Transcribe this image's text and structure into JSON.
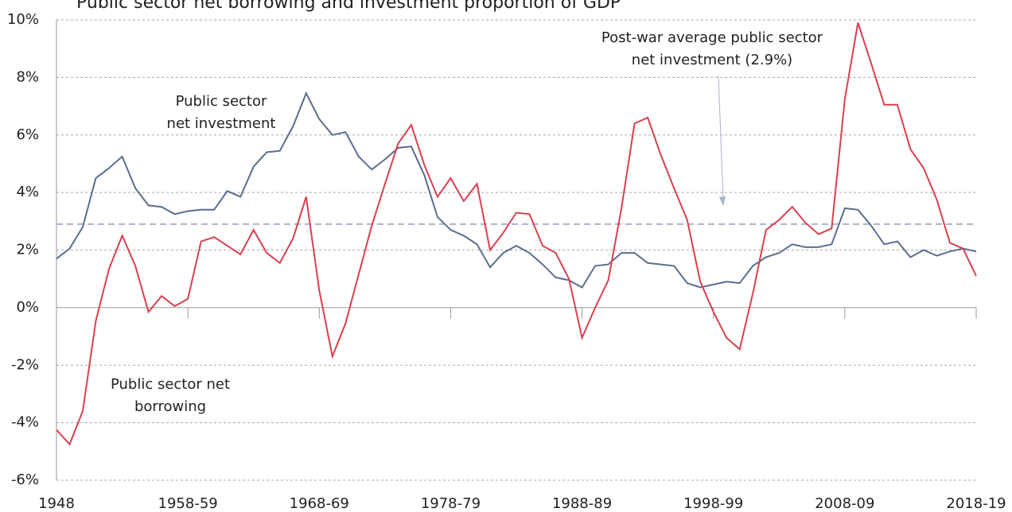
{
  "chart_data": {
    "type": "line",
    "title": "Public sector net borrowing and investment proportion of GDP",
    "categories": [
      "1948",
      null,
      null,
      null,
      null,
      null,
      null,
      null,
      null,
      null,
      "1958-59",
      null,
      null,
      null,
      null,
      null,
      null,
      null,
      null,
      null,
      "1968-69",
      null,
      null,
      null,
      null,
      null,
      null,
      null,
      null,
      null,
      "1978-79",
      null,
      null,
      null,
      null,
      null,
      null,
      null,
      null,
      null,
      "1988-89",
      null,
      null,
      null,
      null,
      null,
      null,
      null,
      null,
      null,
      "1998-99",
      null,
      null,
      null,
      null,
      null,
      null,
      null,
      null,
      null,
      "2008-09",
      null,
      null,
      null,
      null,
      null,
      null,
      null,
      null,
      null,
      "2018-19"
    ],
    "series": [
      {
        "name": "Public sector net investment",
        "label_lines": [
          "Public sector",
          "net investment"
        ],
        "color": "#5a6e8f",
        "values": [
          1.7,
          2.05,
          2.8,
          4.5,
          4.85,
          5.25,
          4.15,
          3.55,
          3.5,
          3.25,
          3.35,
          3.4,
          3.4,
          4.05,
          3.85,
          4.9,
          5.4,
          5.45,
          6.3,
          7.45,
          6.55,
          6.0,
          6.1,
          5.25,
          4.8,
          5.15,
          5.55,
          5.6,
          4.6,
          3.15,
          2.7,
          2.5,
          2.2,
          1.4,
          1.9,
          2.15,
          1.9,
          1.5,
          1.05,
          0.95,
          0.7,
          1.45,
          1.5,
          1.9,
          1.9,
          1.55,
          1.5,
          1.45,
          0.85,
          0.7,
          0.8,
          0.9,
          0.85,
          1.45,
          1.75,
          1.9,
          2.2,
          2.1,
          2.1,
          2.2,
          3.45,
          3.4,
          2.85,
          2.2,
          2.3,
          1.75,
          2.0,
          1.8,
          1.95,
          2.05,
          1.95
        ]
      },
      {
        "name": "Public sector net borrowing",
        "label_lines": [
          "Public sector net",
          "borrowing"
        ],
        "color": "#d8404f",
        "values": [
          -4.25,
          -4.75,
          -3.6,
          -0.45,
          1.35,
          2.5,
          1.45,
          -0.15,
          0.4,
          0.05,
          0.3,
          2.3,
          2.45,
          2.15,
          1.85,
          2.7,
          1.9,
          1.55,
          2.4,
          3.85,
          0.6,
          -1.7,
          -0.55,
          1.15,
          2.85,
          4.3,
          5.7,
          6.35,
          4.95,
          3.85,
          4.5,
          3.7,
          4.3,
          2.0,
          2.6,
          3.3,
          3.25,
          2.15,
          1.9,
          1.0,
          -1.05,
          0.0,
          0.95,
          3.45,
          6.4,
          6.6,
          5.3,
          4.15,
          3.05,
          0.9,
          -0.15,
          -1.05,
          -1.45,
          0.5,
          2.7,
          3.05,
          3.5,
          2.95,
          2.55,
          2.75,
          7.25,
          9.9,
          8.5,
          7.05,
          7.05,
          5.5,
          4.85,
          3.75,
          2.25,
          2.05,
          1.1
        ]
      }
    ],
    "reference_line": {
      "value": 2.9,
      "color": "#a7b4cc",
      "label_lines": [
        "Post-war average public sector",
        "net investment (2.9%)"
      ]
    },
    "ylim": [
      -6,
      10
    ],
    "yticks": [
      {
        "value": -6,
        "label": "-6%"
      },
      {
        "value": -4,
        "label": "-4%"
      },
      {
        "value": -2,
        "label": "-2%"
      },
      {
        "value": 0,
        "label": "0%"
      },
      {
        "value": 2,
        "label": "2%"
      },
      {
        "value": 4,
        "label": "4%"
      },
      {
        "value": 6,
        "label": "6%"
      },
      {
        "value": 8,
        "label": "8%"
      },
      {
        "value": 10,
        "label": "10%"
      }
    ],
    "grid": true
  }
}
